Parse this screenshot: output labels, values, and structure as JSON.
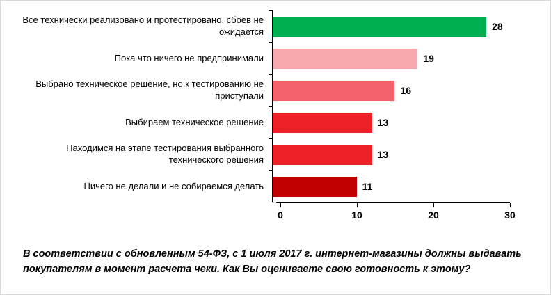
{
  "chart_data": {
    "type": "bar",
    "orientation": "horizontal",
    "title": "",
    "xlabel": "",
    "ylabel": "",
    "categories": [
      "Все технически реализовано и протестировано, сбоев не ожидается",
      "Пока что ничего не предпринимали",
      "Выбрано техническое решение, но к тестированию не приступали",
      "Выбираем техническое решение",
      "Находимся на этапе тестирования выбранного технического решения",
      "Ничего не делали и не собираемся делать"
    ],
    "values": [
      28,
      19,
      16,
      13,
      13,
      11
    ],
    "colors": [
      "#00B050",
      "#F7A8AC",
      "#F4626B",
      "#EE2128",
      "#EE2128",
      "#C00000"
    ],
    "xlim": [
      0,
      30
    ],
    "xticks": [
      0,
      10,
      20,
      30
    ],
    "grid": false,
    "legend": false,
    "value_labels": true
  },
  "caption": "В соответствии с обновленным 54-ФЗ, с 1 июля 2017 г. интернет-магазины должны выдавать покупателям в момент расчета чеки. Как Вы оцениваете свою готовность к этому?"
}
